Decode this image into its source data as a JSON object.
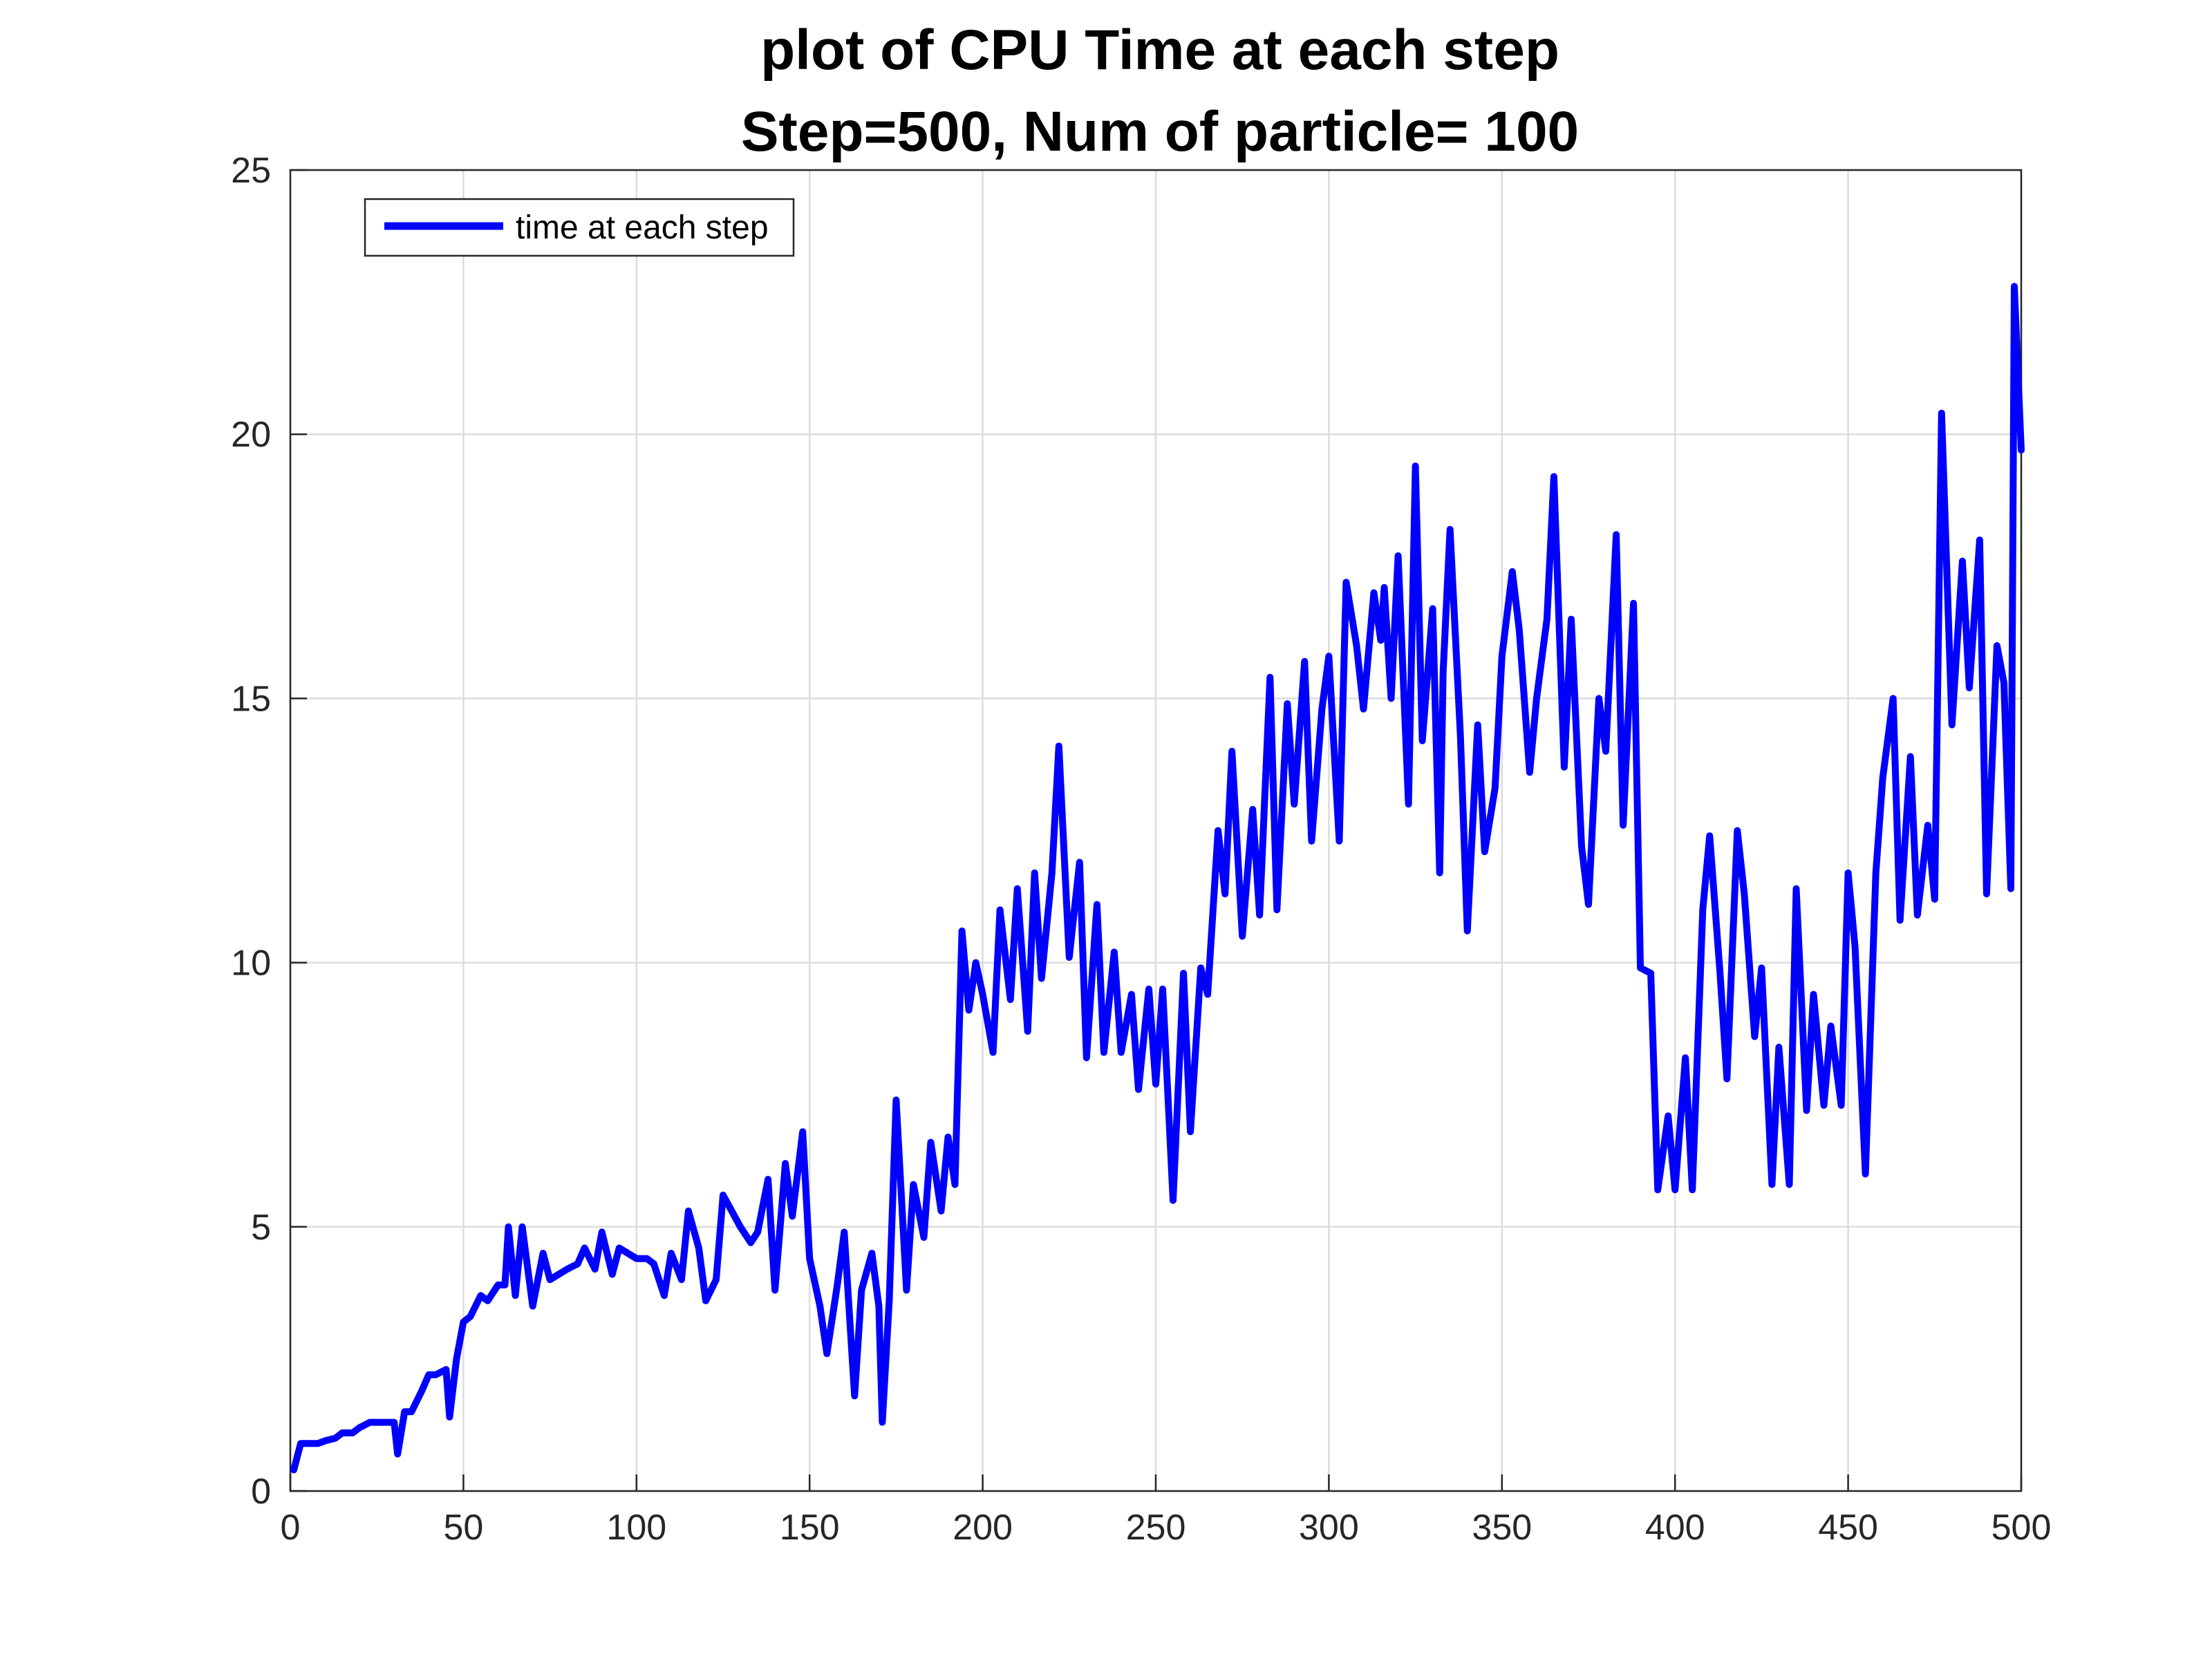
{
  "chart_data": {
    "type": "line",
    "title": "plot of CPU Time at each step",
    "subtitle": "Step=500, Num of particle= 100",
    "xlabel": "",
    "ylabel": "",
    "xlim": [
      0,
      500
    ],
    "ylim": [
      0,
      25
    ],
    "xticks": [
      "0",
      "50",
      "100",
      "150",
      "200",
      "250",
      "300",
      "350",
      "400",
      "450",
      "500"
    ],
    "yticks": [
      "0",
      "5",
      "10",
      "15",
      "20",
      "25"
    ],
    "grid": true,
    "legend_position": "top-left",
    "series": [
      {
        "name": "time at each step",
        "color": "#0000ff",
        "x": [
          1,
          3,
          5,
          8,
          10,
          13,
          15,
          18,
          20,
          23,
          25,
          28,
          30,
          31,
          33,
          35,
          38,
          40,
          42,
          45,
          46,
          48,
          50,
          52,
          55,
          57,
          60,
          62,
          63,
          65,
          67,
          70,
          73,
          75,
          80,
          83,
          85,
          88,
          90,
          93,
          95,
          100,
          103,
          105,
          108,
          110,
          113,
          115,
          118,
          120,
          123,
          125,
          130,
          133,
          135,
          138,
          140,
          143,
          145,
          148,
          150,
          153,
          155,
          158,
          160,
          163,
          165,
          168,
          170,
          171,
          173,
          175,
          178,
          180,
          183,
          185,
          188,
          190,
          192,
          194,
          196,
          198,
          200,
          203,
          205,
          208,
          210,
          213,
          215,
          217,
          220,
          222,
          225,
          228,
          230,
          233,
          235,
          238,
          240,
          243,
          245,
          248,
          250,
          252,
          255,
          258,
          260,
          263,
          265,
          268,
          270,
          272,
          275,
          278,
          280,
          283,
          285,
          288,
          290,
          293,
          295,
          298,
          300,
          303,
          305,
          308,
          310,
          313,
          315,
          316,
          318,
          320,
          323,
          325,
          327,
          330,
          332,
          333,
          335,
          338,
          340,
          343,
          345,
          348,
          350,
          353,
          355,
          358,
          360,
          363,
          365,
          368,
          370,
          373,
          375,
          378,
          380,
          383,
          385,
          388,
          390,
          393,
          395,
          398,
          400,
          403,
          405,
          408,
          410,
          413,
          415,
          418,
          420,
          423,
          425,
          428,
          430,
          433,
          435,
          438,
          440,
          443,
          445,
          448,
          450,
          452,
          455,
          458,
          460,
          463,
          465,
          468,
          470,
          473,
          475,
          477,
          480,
          483,
          485,
          488,
          490,
          493,
          495,
          497,
          498,
          500
        ],
        "values": [
          0.4,
          0.9,
          0.9,
          0.9,
          0.95,
          1.0,
          1.1,
          1.1,
          1.2,
          1.3,
          1.3,
          1.3,
          1.3,
          0.7,
          1.5,
          1.5,
          1.9,
          2.2,
          2.2,
          2.3,
          1.4,
          2.5,
          3.2,
          3.3,
          3.7,
          3.6,
          3.9,
          3.9,
          5.0,
          3.7,
          5.0,
          3.5,
          4.5,
          4.0,
          4.2,
          4.3,
          4.6,
          4.2,
          4.9,
          4.1,
          4.6,
          4.4,
          4.4,
          4.3,
          3.7,
          4.5,
          4.0,
          5.3,
          4.6,
          3.6,
          4.0,
          5.6,
          5.0,
          4.7,
          4.9,
          5.9,
          3.8,
          6.2,
          5.2,
          6.8,
          4.4,
          3.5,
          2.6,
          3.9,
          4.9,
          1.8,
          3.8,
          4.5,
          3.5,
          1.3,
          3.6,
          7.4,
          3.8,
          5.8,
          4.8,
          6.6,
          5.3,
          6.7,
          5.8,
          10.6,
          9.1,
          10.0,
          9.4,
          8.3,
          11.0,
          9.3,
          11.4,
          8.7,
          11.7,
          9.7,
          11.7,
          14.1,
          10.1,
          11.9,
          8.2,
          11.1,
          8.3,
          10.2,
          8.3,
          9.4,
          7.6,
          9.5,
          7.7,
          9.5,
          5.5,
          9.8,
          6.8,
          9.9,
          9.4,
          12.5,
          11.3,
          14.0,
          10.5,
          12.9,
          10.9,
          15.4,
          11.0,
          14.9,
          13.0,
          15.7,
          12.3,
          14.8,
          15.8,
          12.3,
          17.2,
          16.0,
          14.8,
          17.0,
          16.1,
          17.1,
          15.0,
          17.7,
          13.0,
          19.4,
          14.2,
          16.7,
          11.7,
          15.5,
          18.2,
          14.3,
          10.6,
          14.5,
          12.1,
          13.3,
          15.8,
          17.4,
          16.3,
          13.6,
          15.0,
          16.5,
          19.2,
          13.7,
          16.5,
          12.2,
          11.1,
          15.0,
          14.0,
          18.1,
          12.6,
          16.8,
          9.9,
          9.8,
          5.7,
          7.1,
          5.7,
          8.2,
          5.7,
          11.0,
          12.4,
          9.8,
          7.8,
          12.5,
          11.3,
          8.6,
          9.9,
          5.8,
          8.4,
          5.8,
          11.4,
          7.2,
          9.4,
          7.3,
          8.8,
          7.3,
          11.7,
          10.3,
          6.0,
          11.7,
          13.5,
          15.0,
          10.8,
          13.9,
          10.9,
          12.6,
          11.2,
          20.4,
          14.5,
          17.6,
          15.2,
          18.0,
          11.3,
          16.0,
          15.3,
          11.4,
          22.8,
          19.7
        ]
      }
    ]
  }
}
